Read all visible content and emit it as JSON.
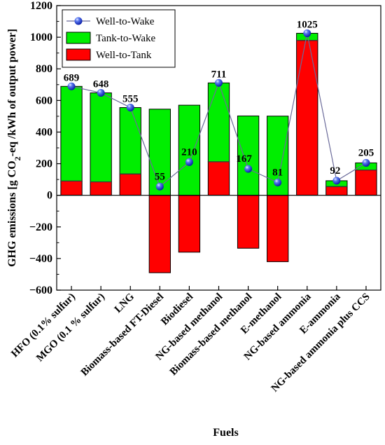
{
  "chart_data": {
    "type": "bar",
    "categories": [
      "HFO (0.1% sulfur)",
      "MGO (0.1 % sulfur)",
      "LNG",
      "Biomass-based FT-Diesel",
      "Biodiesel",
      "NG-based methanol",
      "Biomass-based methanol",
      "E-methanol",
      "NG-based ammonia",
      "E-ammonia",
      "NG-based ammonia plus CCS"
    ],
    "series": [
      {
        "name": "Well-to-Tank",
        "type": "bar",
        "values": [
          90,
          85,
          135,
          -490,
          -360,
          212,
          -335,
          -420,
          980,
          55,
          160
        ],
        "color": "#ff0000"
      },
      {
        "name": "Tank-to-Wake",
        "type": "bar",
        "values": [
          599,
          563,
          420,
          545,
          570,
          499,
          502,
          501,
          45,
          37,
          45
        ],
        "color": "#00ee00"
      },
      {
        "name": "Well-to-Wake",
        "type": "line",
        "values": [
          689,
          648,
          555,
          55,
          210,
          711,
          167,
          81,
          1025,
          92,
          205
        ],
        "color": "#1f2ecc"
      }
    ],
    "data_labels": [
      "689",
      "648",
      "555",
      "55",
      "210",
      "711",
      "167",
      "81",
      "1025",
      "92",
      "205"
    ],
    "title": "",
    "xlabel": "Fuels",
    "ylabel": "GHG emissions [g CO",
    "ylabel_sub": "2",
    "ylabel_rest": "-eq /kWh of output power]",
    "ylim": [
      -600,
      1200
    ],
    "yticks": [
      -600,
      -400,
      -200,
      0,
      200,
      400,
      600,
      800,
      1000,
      1200
    ],
    "ytick_labels": [
      "−600",
      "−400",
      "−200",
      "0",
      "200",
      "400",
      "600",
      "800",
      "1000",
      "1200"
    ],
    "legend_position": "top-left",
    "grid": false
  }
}
